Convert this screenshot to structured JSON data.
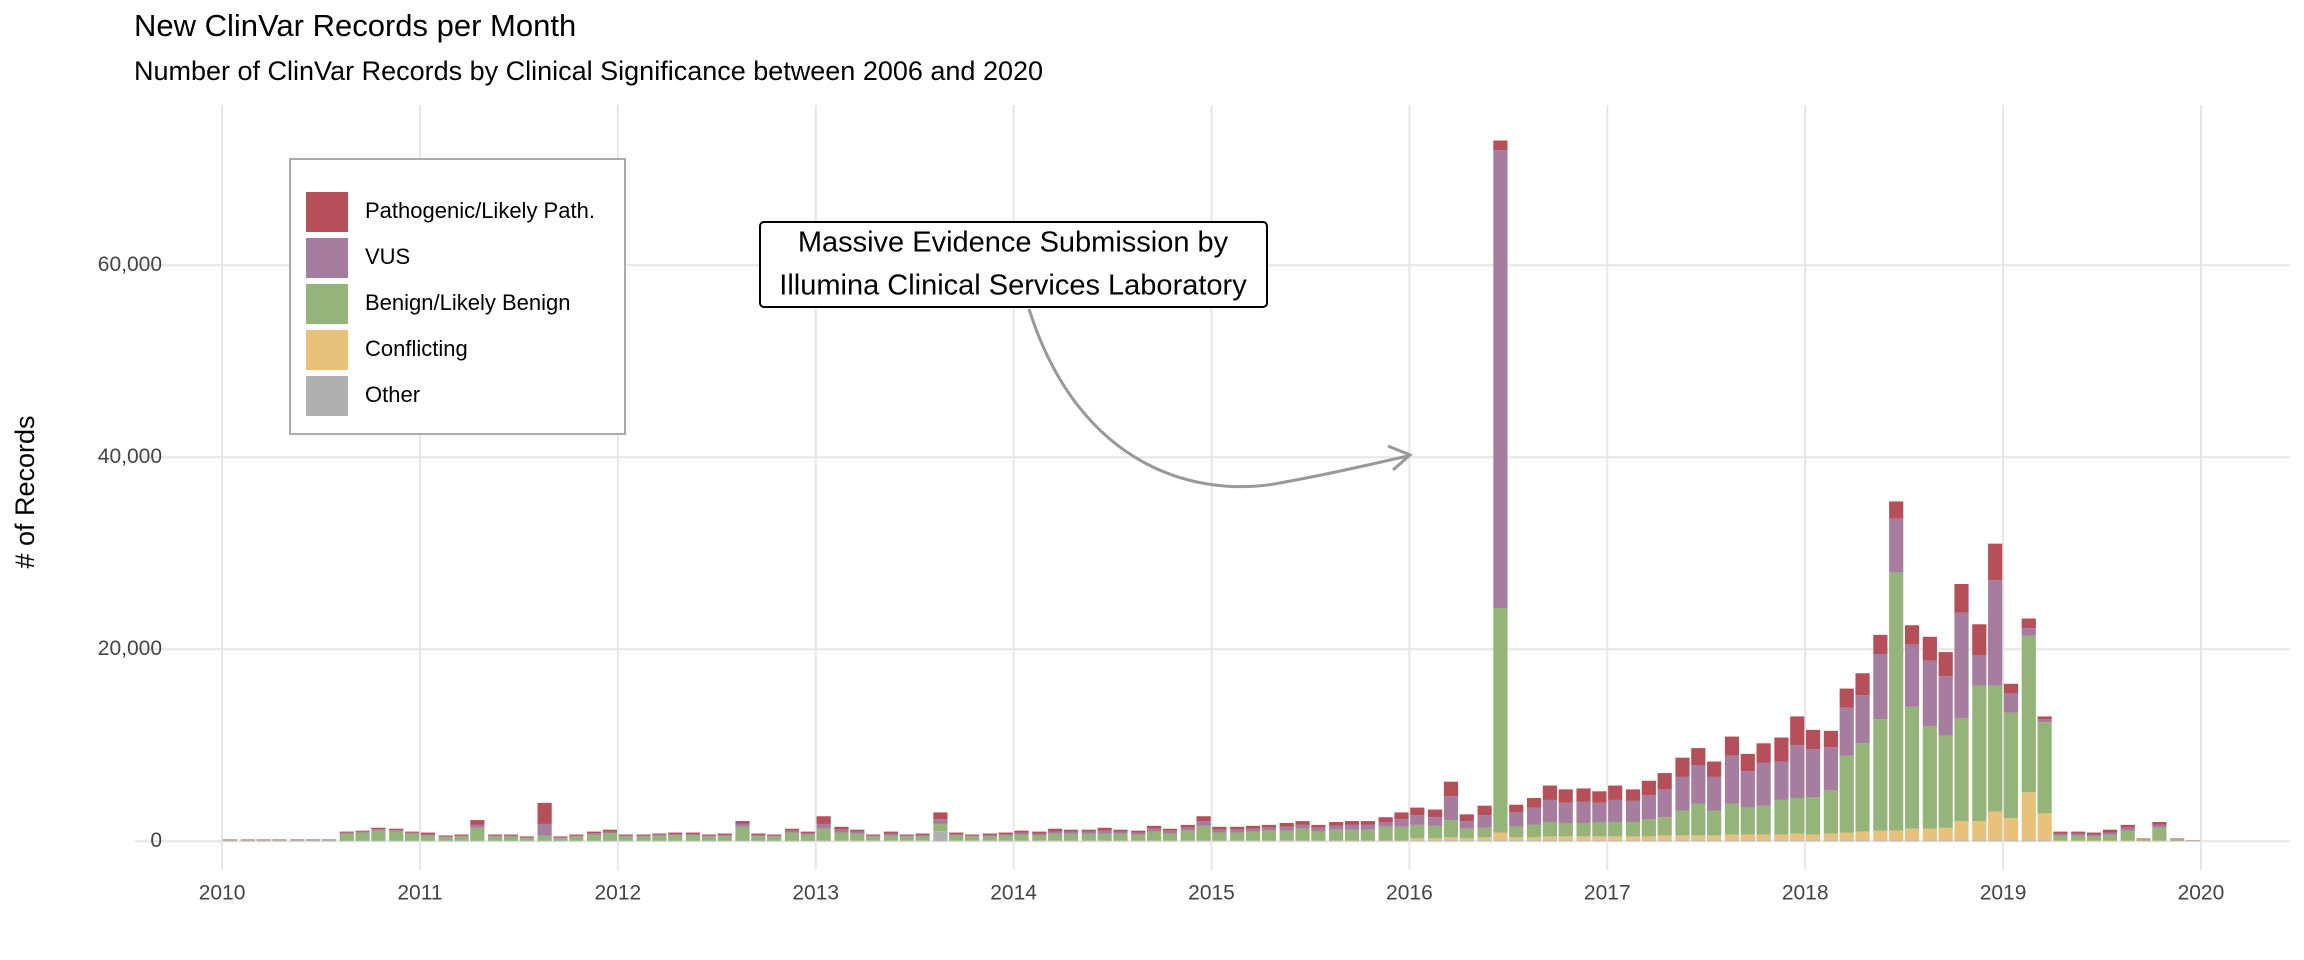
{
  "chart_data": {
    "type": "stacked_bar",
    "title": "New ClinVar Records per Month",
    "subtitle": "Number of ClinVar Records by Clinical Significance between 2006 and 2020",
    "y_label": "# of Records",
    "annotation": [
      "Massive Evidence Submission by",
      "Illumina Clinical Services Laboratory"
    ],
    "legend": "top-left",
    "grid": true,
    "xlim": [
      2009.56,
      2020.45
    ],
    "xticks": [
      2010,
      2011,
      2012,
      2013,
      2014,
      2015,
      2016,
      2017,
      2018,
      2019,
      2020
    ],
    "ylim": [
      -3000,
      76700
    ],
    "yticks": [
      0,
      {
        "value": 20000,
        "label": "20,000"
      },
      {
        "value": 40000,
        "label": "40,000"
      },
      {
        "value": 60000,
        "label": "60,000"
      }
    ],
    "x": [
      2010.04,
      2010.13,
      2010.21,
      2010.29,
      2010.38,
      2010.46,
      2010.54,
      2010.63,
      2010.71,
      2010.79,
      2010.88,
      2010.96,
      2011.04,
      2011.13,
      2011.21,
      2011.29,
      2011.38,
      2011.46,
      2011.54,
      2011.63,
      2011.71,
      2011.79,
      2011.88,
      2011.96,
      2012.04,
      2012.13,
      2012.21,
      2012.29,
      2012.38,
      2012.46,
      2012.54,
      2012.63,
      2012.71,
      2012.79,
      2012.88,
      2012.96,
      2013.04,
      2013.13,
      2013.21,
      2013.29,
      2013.38,
      2013.46,
      2013.54,
      2013.63,
      2013.71,
      2013.79,
      2013.88,
      2013.96,
      2014.04,
      2014.13,
      2014.21,
      2014.29,
      2014.38,
      2014.46,
      2014.54,
      2014.63,
      2014.71,
      2014.79,
      2014.88,
      2014.96,
      2015.04,
      2015.13,
      2015.21,
      2015.29,
      2015.38,
      2015.46,
      2015.54,
      2015.63,
      2015.71,
      2015.79,
      2015.88,
      2015.96,
      2016.04,
      2016.13,
      2016.21,
      2016.29,
      2016.38,
      2016.46,
      2016.54,
      2016.63,
      2016.71,
      2016.79,
      2016.88,
      2016.96,
      2017.04,
      2017.13,
      2017.21,
      2017.29,
      2017.38,
      2017.46,
      2017.54,
      2017.63,
      2017.71,
      2017.79,
      2017.88,
      2017.96,
      2018.04,
      2018.13,
      2018.21,
      2018.29,
      2018.38,
      2018.46,
      2018.54,
      2018.63,
      2018.71,
      2018.79,
      2018.88,
      2018.96,
      2019.04,
      2019.13,
      2019.21,
      2019.29,
      2019.38,
      2019.46,
      2019.54,
      2019.63,
      2019.71,
      2019.79,
      2019.88,
      2019.96
    ],
    "series": [
      {
        "name": "Pathogenic/Likely Path.",
        "color": "#b5505a",
        "values": [
          60,
          60,
          60,
          60,
          60,
          60,
          60,
          100,
          100,
          150,
          150,
          100,
          200,
          100,
          100,
          500,
          100,
          100,
          100,
          2200,
          100,
          100,
          150,
          200,
          100,
          100,
          100,
          150,
          150,
          100,
          150,
          300,
          150,
          100,
          200,
          150,
          800,
          300,
          200,
          100,
          200,
          100,
          150,
          700,
          150,
          100,
          150,
          150,
          200,
          200,
          300,
          200,
          200,
          300,
          200,
          200,
          300,
          200,
          300,
          500,
          300,
          300,
          300,
          300,
          400,
          400,
          300,
          400,
          400,
          400,
          500,
          700,
          800,
          800,
          1500,
          700,
          1000,
          1000,
          800,
          1000,
          1500,
          1400,
          1400,
          1200,
          1500,
          1200,
          1500,
          1700,
          2000,
          1800,
          1600,
          2000,
          1800,
          2000,
          2500,
          3000,
          2000,
          1700,
          2000,
          2300,
          2000,
          1800,
          2000,
          2500,
          2500,
          3000,
          3200,
          3800,
          1000,
          1000,
          300,
          200,
          200,
          200,
          300,
          300,
          50,
          300,
          50,
          20
        ]
      },
      {
        "name": "VUS",
        "color": "#a67c9f",
        "values": [
          20,
          20,
          20,
          20,
          20,
          20,
          20,
          100,
          100,
          150,
          150,
          100,
          100,
          100,
          100,
          300,
          100,
          100,
          100,
          1200,
          100,
          100,
          150,
          150,
          100,
          100,
          100,
          100,
          100,
          100,
          100,
          300,
          100,
          100,
          200,
          150,
          500,
          300,
          200,
          100,
          200,
          100,
          150,
          500,
          150,
          100,
          150,
          150,
          200,
          200,
          200,
          200,
          200,
          300,
          200,
          200,
          300,
          300,
          300,
          500,
          300,
          300,
          300,
          300,
          400,
          400,
          400,
          400,
          500,
          500,
          500,
          800,
          1000,
          900,
          2500,
          800,
          1300,
          47700,
          1500,
          1800,
          2300,
          2100,
          2200,
          2000,
          2300,
          2200,
          2500,
          2900,
          3500,
          4000,
          3500,
          5000,
          3800,
          4500,
          4000,
          5500,
          5000,
          4500,
          5000,
          5000,
          6800,
          5600,
          6500,
          6800,
          6200,
          11000,
          3200,
          11000,
          2000,
          800,
          300,
          200,
          200,
          200,
          200,
          300,
          50,
          300,
          50,
          20
        ]
      },
      {
        "name": "Benign/Likely Benign",
        "color": "#94b47a",
        "values": [
          50,
          50,
          50,
          50,
          50,
          50,
          50,
          750,
          850,
          1050,
          950,
          750,
          550,
          350,
          450,
          1350,
          450,
          450,
          250,
          550,
          250,
          450,
          650,
          800,
          450,
          450,
          550,
          600,
          600,
          450,
          500,
          1450,
          500,
          450,
          850,
          650,
          1230,
          830,
          730,
          430,
          530,
          430,
          430,
          780,
          530,
          430,
          430,
          530,
          630,
          530,
          730,
          730,
          730,
          730,
          730,
          630,
          930,
          730,
          1030,
          1530,
          830,
          830,
          930,
          1030,
          1030,
          1230,
          930,
          1130,
          1130,
          1130,
          1430,
          1430,
          1400,
          1300,
          1800,
          1000,
          1000,
          23400,
          1100,
          1300,
          1500,
          1400,
          1400,
          1500,
          1500,
          1500,
          1800,
          1900,
          2600,
          3300,
          2600,
          3200,
          2800,
          3000,
          3600,
          3700,
          3900,
          4500,
          8000,
          9200,
          11600,
          26900,
          12700,
          10700,
          9600,
          10700,
          14100,
          13100,
          11000,
          16300,
          9500,
          530,
          530,
          430,
          630,
          1030,
          160,
          1330,
          160,
          30
        ]
      },
      {
        "name": "Conflicting",
        "color": "#e8c27a",
        "values": [
          0,
          0,
          0,
          0,
          0,
          0,
          0,
          0,
          0,
          0,
          0,
          0,
          0,
          0,
          0,
          0,
          0,
          0,
          0,
          0,
          0,
          0,
          0,
          0,
          0,
          0,
          0,
          0,
          0,
          0,
          0,
          0,
          0,
          0,
          0,
          0,
          20,
          20,
          20,
          20,
          20,
          20,
          20,
          20,
          20,
          20,
          20,
          20,
          20,
          20,
          20,
          20,
          20,
          20,
          20,
          20,
          20,
          20,
          20,
          20,
          20,
          20,
          20,
          20,
          20,
          20,
          20,
          20,
          20,
          20,
          20,
          20,
          200,
          200,
          300,
          200,
          300,
          800,
          300,
          300,
          400,
          400,
          400,
          400,
          400,
          400,
          400,
          500,
          500,
          500,
          500,
          600,
          600,
          600,
          600,
          700,
          600,
          700,
          800,
          900,
          1000,
          1000,
          1200,
          1200,
          1300,
          2000,
          2000,
          3000,
          2300,
          5000,
          2800,
          50,
          50,
          50,
          50,
          50,
          20,
          50,
          20,
          10
        ]
      },
      {
        "name": "Other",
        "color": "#b0b0b0",
        "values": [
          50,
          50,
          50,
          50,
          50,
          50,
          50,
          50,
          50,
          50,
          50,
          50,
          50,
          50,
          50,
          50,
          50,
          50,
          50,
          50,
          50,
          50,
          50,
          50,
          50,
          50,
          50,
          50,
          50,
          50,
          50,
          50,
          50,
          50,
          50,
          50,
          50,
          50,
          50,
          50,
          50,
          50,
          50,
          1000,
          50,
          50,
          50,
          50,
          50,
          50,
          50,
          50,
          50,
          50,
          50,
          50,
          50,
          50,
          50,
          50,
          50,
          50,
          50,
          50,
          50,
          50,
          50,
          50,
          50,
          50,
          50,
          50,
          100,
          100,
          100,
          100,
          100,
          100,
          100,
          100,
          100,
          100,
          100,
          100,
          100,
          100,
          100,
          100,
          100,
          100,
          100,
          100,
          100,
          100,
          100,
          100,
          100,
          100,
          100,
          100,
          100,
          100,
          100,
          100,
          100,
          100,
          100,
          100,
          100,
          100,
          100,
          20,
          20,
          20,
          20,
          20,
          20,
          20,
          20,
          20
        ]
      }
    ]
  }
}
